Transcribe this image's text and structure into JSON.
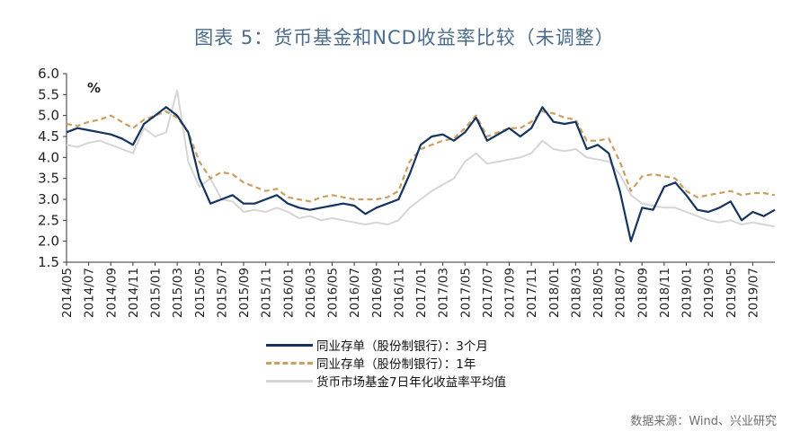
{
  "title": "图表 5：货币基金和NCD收益率比较（未调整）",
  "source": "数据来源：Wind、兴业研究",
  "colors": {
    "series1": "#14335e",
    "series2": "#c9a060",
    "series3": "#d5d5d5",
    "axis": "#333333"
  },
  "chart_data": {
    "type": "line",
    "unit_label": "%",
    "ylim": [
      1.5,
      6.0
    ],
    "y_ticks": [
      "6.0",
      "5.5",
      "5.0",
      "4.5",
      "4.0",
      "3.5",
      "3.0",
      "2.5",
      "2.0",
      "1.5"
    ],
    "x_ticks": [
      "2014/05",
      "2014/07",
      "2014/09",
      "2014/11",
      "2015/01",
      "2015/03",
      "2015/05",
      "2015/07",
      "2015/09",
      "2015/11",
      "2016/01",
      "2016/03",
      "2016/05",
      "2016/07",
      "2016/09",
      "2016/11",
      "2017/01",
      "2017/03",
      "2017/05",
      "2017/07",
      "2017/09",
      "2017/11",
      "2018/01",
      "2018/03",
      "2018/05",
      "2018/07",
      "2018/09",
      "2018/11",
      "2019/01",
      "2019/03",
      "2019/05",
      "2019/07"
    ],
    "x_start": "2014/05",
    "x_end": "2019/09",
    "grid": false,
    "legend_position": "bottom",
    "series": [
      {
        "name": "同业存单（股份制银行）：3个月",
        "points": [
          [
            "2014/05",
            4.6
          ],
          [
            "2014/06",
            4.7
          ],
          [
            "2014/07",
            4.65
          ],
          [
            "2014/08",
            4.6
          ],
          [
            "2014/09",
            4.55
          ],
          [
            "2014/10",
            4.45
          ],
          [
            "2014/11",
            4.3
          ],
          [
            "2014/12",
            4.8
          ],
          [
            "2015/01",
            5.0
          ],
          [
            "2015/02",
            5.2
          ],
          [
            "2015/03",
            5.0
          ],
          [
            "2015/04",
            4.6
          ],
          [
            "2015/05",
            3.5
          ],
          [
            "2015/06",
            2.9
          ],
          [
            "2015/07",
            3.0
          ],
          [
            "2015/08",
            3.1
          ],
          [
            "2015/09",
            2.9
          ],
          [
            "2015/10",
            2.9
          ],
          [
            "2015/11",
            3.0
          ],
          [
            "2015/12",
            3.1
          ],
          [
            "2016/01",
            2.9
          ],
          [
            "2016/02",
            2.8
          ],
          [
            "2016/03",
            2.75
          ],
          [
            "2016/04",
            2.8
          ],
          [
            "2016/05",
            2.85
          ],
          [
            "2016/06",
            2.9
          ],
          [
            "2016/07",
            2.85
          ],
          [
            "2016/08",
            2.65
          ],
          [
            "2016/09",
            2.8
          ],
          [
            "2016/10",
            2.9
          ],
          [
            "2016/11",
            3.0
          ],
          [
            "2016/12",
            3.6
          ],
          [
            "2017/01",
            4.3
          ],
          [
            "2017/02",
            4.5
          ],
          [
            "2017/03",
            4.55
          ],
          [
            "2017/04",
            4.4
          ],
          [
            "2017/05",
            4.6
          ],
          [
            "2017/06",
            4.95
          ],
          [
            "2017/07",
            4.4
          ],
          [
            "2017/08",
            4.55
          ],
          [
            "2017/09",
            4.7
          ],
          [
            "2017/10",
            4.5
          ],
          [
            "2017/11",
            4.7
          ],
          [
            "2017/12",
            5.2
          ],
          [
            "2018/01",
            4.85
          ],
          [
            "2018/02",
            4.8
          ],
          [
            "2018/03",
            4.85
          ],
          [
            "2018/04",
            4.2
          ],
          [
            "2018/05",
            4.3
          ],
          [
            "2018/06",
            4.1
          ],
          [
            "2018/07",
            3.2
          ],
          [
            "2018/08",
            2.0
          ],
          [
            "2018/09",
            2.8
          ],
          [
            "2018/10",
            2.75
          ],
          [
            "2018/11",
            3.3
          ],
          [
            "2018/12",
            3.4
          ],
          [
            "2019/01",
            3.1
          ],
          [
            "2019/02",
            2.75
          ],
          [
            "2019/03",
            2.7
          ],
          [
            "2019/04",
            2.8
          ],
          [
            "2019/05",
            2.95
          ],
          [
            "2019/06",
            2.5
          ],
          [
            "2019/07",
            2.7
          ],
          [
            "2019/08",
            2.6
          ],
          [
            "2019/09",
            2.75
          ]
        ]
      },
      {
        "name": "同业存单（股份制银行）：1年",
        "points": [
          [
            "2014/05",
            4.8
          ],
          [
            "2014/06",
            4.75
          ],
          [
            "2014/07",
            4.85
          ],
          [
            "2014/08",
            4.9
          ],
          [
            "2014/09",
            5.0
          ],
          [
            "2014/10",
            4.85
          ],
          [
            "2014/11",
            4.7
          ],
          [
            "2014/12",
            4.9
          ],
          [
            "2015/01",
            5.0
          ],
          [
            "2015/02",
            5.1
          ],
          [
            "2015/03",
            4.95
          ],
          [
            "2015/04",
            4.6
          ],
          [
            "2015/05",
            3.9
          ],
          [
            "2015/06",
            3.5
          ],
          [
            "2015/07",
            3.65
          ],
          [
            "2015/08",
            3.6
          ],
          [
            "2015/09",
            3.4
          ],
          [
            "2015/10",
            3.3
          ],
          [
            "2015/11",
            3.2
          ],
          [
            "2015/12",
            3.25
          ],
          [
            "2016/01",
            3.05
          ],
          [
            "2016/02",
            3.0
          ],
          [
            "2016/03",
            2.95
          ],
          [
            "2016/04",
            3.05
          ],
          [
            "2016/05",
            3.1
          ],
          [
            "2016/06",
            3.05
          ],
          [
            "2016/07",
            3.0
          ],
          [
            "2016/08",
            3.0
          ],
          [
            "2016/09",
            3.0
          ],
          [
            "2016/10",
            3.05
          ],
          [
            "2016/11",
            3.2
          ],
          [
            "2016/12",
            3.9
          ],
          [
            "2017/01",
            4.2
          ],
          [
            "2017/02",
            4.3
          ],
          [
            "2017/03",
            4.4
          ],
          [
            "2017/04",
            4.45
          ],
          [
            "2017/05",
            4.7
          ],
          [
            "2017/06",
            5.0
          ],
          [
            "2017/07",
            4.5
          ],
          [
            "2017/08",
            4.6
          ],
          [
            "2017/09",
            4.7
          ],
          [
            "2017/10",
            4.7
          ],
          [
            "2017/11",
            4.85
          ],
          [
            "2017/12",
            5.1
          ],
          [
            "2018/01",
            5.05
          ],
          [
            "2018/02",
            4.95
          ],
          [
            "2018/03",
            4.9
          ],
          [
            "2018/04",
            4.4
          ],
          [
            "2018/05",
            4.4
          ],
          [
            "2018/06",
            4.45
          ],
          [
            "2018/07",
            3.9
          ],
          [
            "2018/08",
            3.2
          ],
          [
            "2018/09",
            3.55
          ],
          [
            "2018/10",
            3.6
          ],
          [
            "2018/11",
            3.55
          ],
          [
            "2018/12",
            3.5
          ],
          [
            "2019/01",
            3.2
          ],
          [
            "2019/02",
            3.05
          ],
          [
            "2019/03",
            3.1
          ],
          [
            "2019/04",
            3.15
          ],
          [
            "2019/05",
            3.2
          ],
          [
            "2019/06",
            3.1
          ],
          [
            "2019/07",
            3.15
          ],
          [
            "2019/08",
            3.15
          ],
          [
            "2019/09",
            3.1
          ]
        ]
      },
      {
        "name": "货币市场基金7日年化收益率平均值",
        "points": [
          [
            "2014/05",
            4.3
          ],
          [
            "2014/06",
            4.25
          ],
          [
            "2014/07",
            4.35
          ],
          [
            "2014/08",
            4.4
          ],
          [
            "2014/09",
            4.3
          ],
          [
            "2014/10",
            4.2
          ],
          [
            "2014/11",
            4.1
          ],
          [
            "2014/12",
            4.7
          ],
          [
            "2015/01",
            4.5
          ],
          [
            "2015/02",
            4.6
          ],
          [
            "2015/03",
            5.6
          ],
          [
            "2015/04",
            3.9
          ],
          [
            "2015/05",
            3.3
          ],
          [
            "2015/06",
            3.5
          ],
          [
            "2015/07",
            3.0
          ],
          [
            "2015/08",
            2.95
          ],
          [
            "2015/09",
            2.7
          ],
          [
            "2015/10",
            2.75
          ],
          [
            "2015/11",
            2.7
          ],
          [
            "2015/12",
            2.8
          ],
          [
            "2016/01",
            2.7
          ],
          [
            "2016/02",
            2.55
          ],
          [
            "2016/03",
            2.6
          ],
          [
            "2016/04",
            2.5
          ],
          [
            "2016/05",
            2.55
          ],
          [
            "2016/06",
            2.5
          ],
          [
            "2016/07",
            2.45
          ],
          [
            "2016/08",
            2.4
          ],
          [
            "2016/09",
            2.45
          ],
          [
            "2016/10",
            2.4
          ],
          [
            "2016/11",
            2.5
          ],
          [
            "2016/12",
            2.8
          ],
          [
            "2017/01",
            3.0
          ],
          [
            "2017/02",
            3.2
          ],
          [
            "2017/03",
            3.35
          ],
          [
            "2017/04",
            3.5
          ],
          [
            "2017/05",
            3.9
          ],
          [
            "2017/06",
            4.1
          ],
          [
            "2017/07",
            3.85
          ],
          [
            "2017/08",
            3.9
          ],
          [
            "2017/09",
            3.95
          ],
          [
            "2017/10",
            4.0
          ],
          [
            "2017/11",
            4.1
          ],
          [
            "2017/12",
            4.4
          ],
          [
            "2018/01",
            4.2
          ],
          [
            "2018/02",
            4.15
          ],
          [
            "2018/03",
            4.2
          ],
          [
            "2018/04",
            4.0
          ],
          [
            "2018/05",
            3.95
          ],
          [
            "2018/06",
            3.9
          ],
          [
            "2018/07",
            3.6
          ],
          [
            "2018/08",
            3.1
          ],
          [
            "2018/09",
            2.9
          ],
          [
            "2018/10",
            2.85
          ],
          [
            "2018/11",
            2.8
          ],
          [
            "2018/12",
            2.8
          ],
          [
            "2019/01",
            2.7
          ],
          [
            "2019/02",
            2.6
          ],
          [
            "2019/03",
            2.5
          ],
          [
            "2019/04",
            2.45
          ],
          [
            "2019/05",
            2.5
          ],
          [
            "2019/06",
            2.4
          ],
          [
            "2019/07",
            2.45
          ],
          [
            "2019/08",
            2.4
          ],
          [
            "2019/09",
            2.35
          ]
        ]
      }
    ]
  }
}
